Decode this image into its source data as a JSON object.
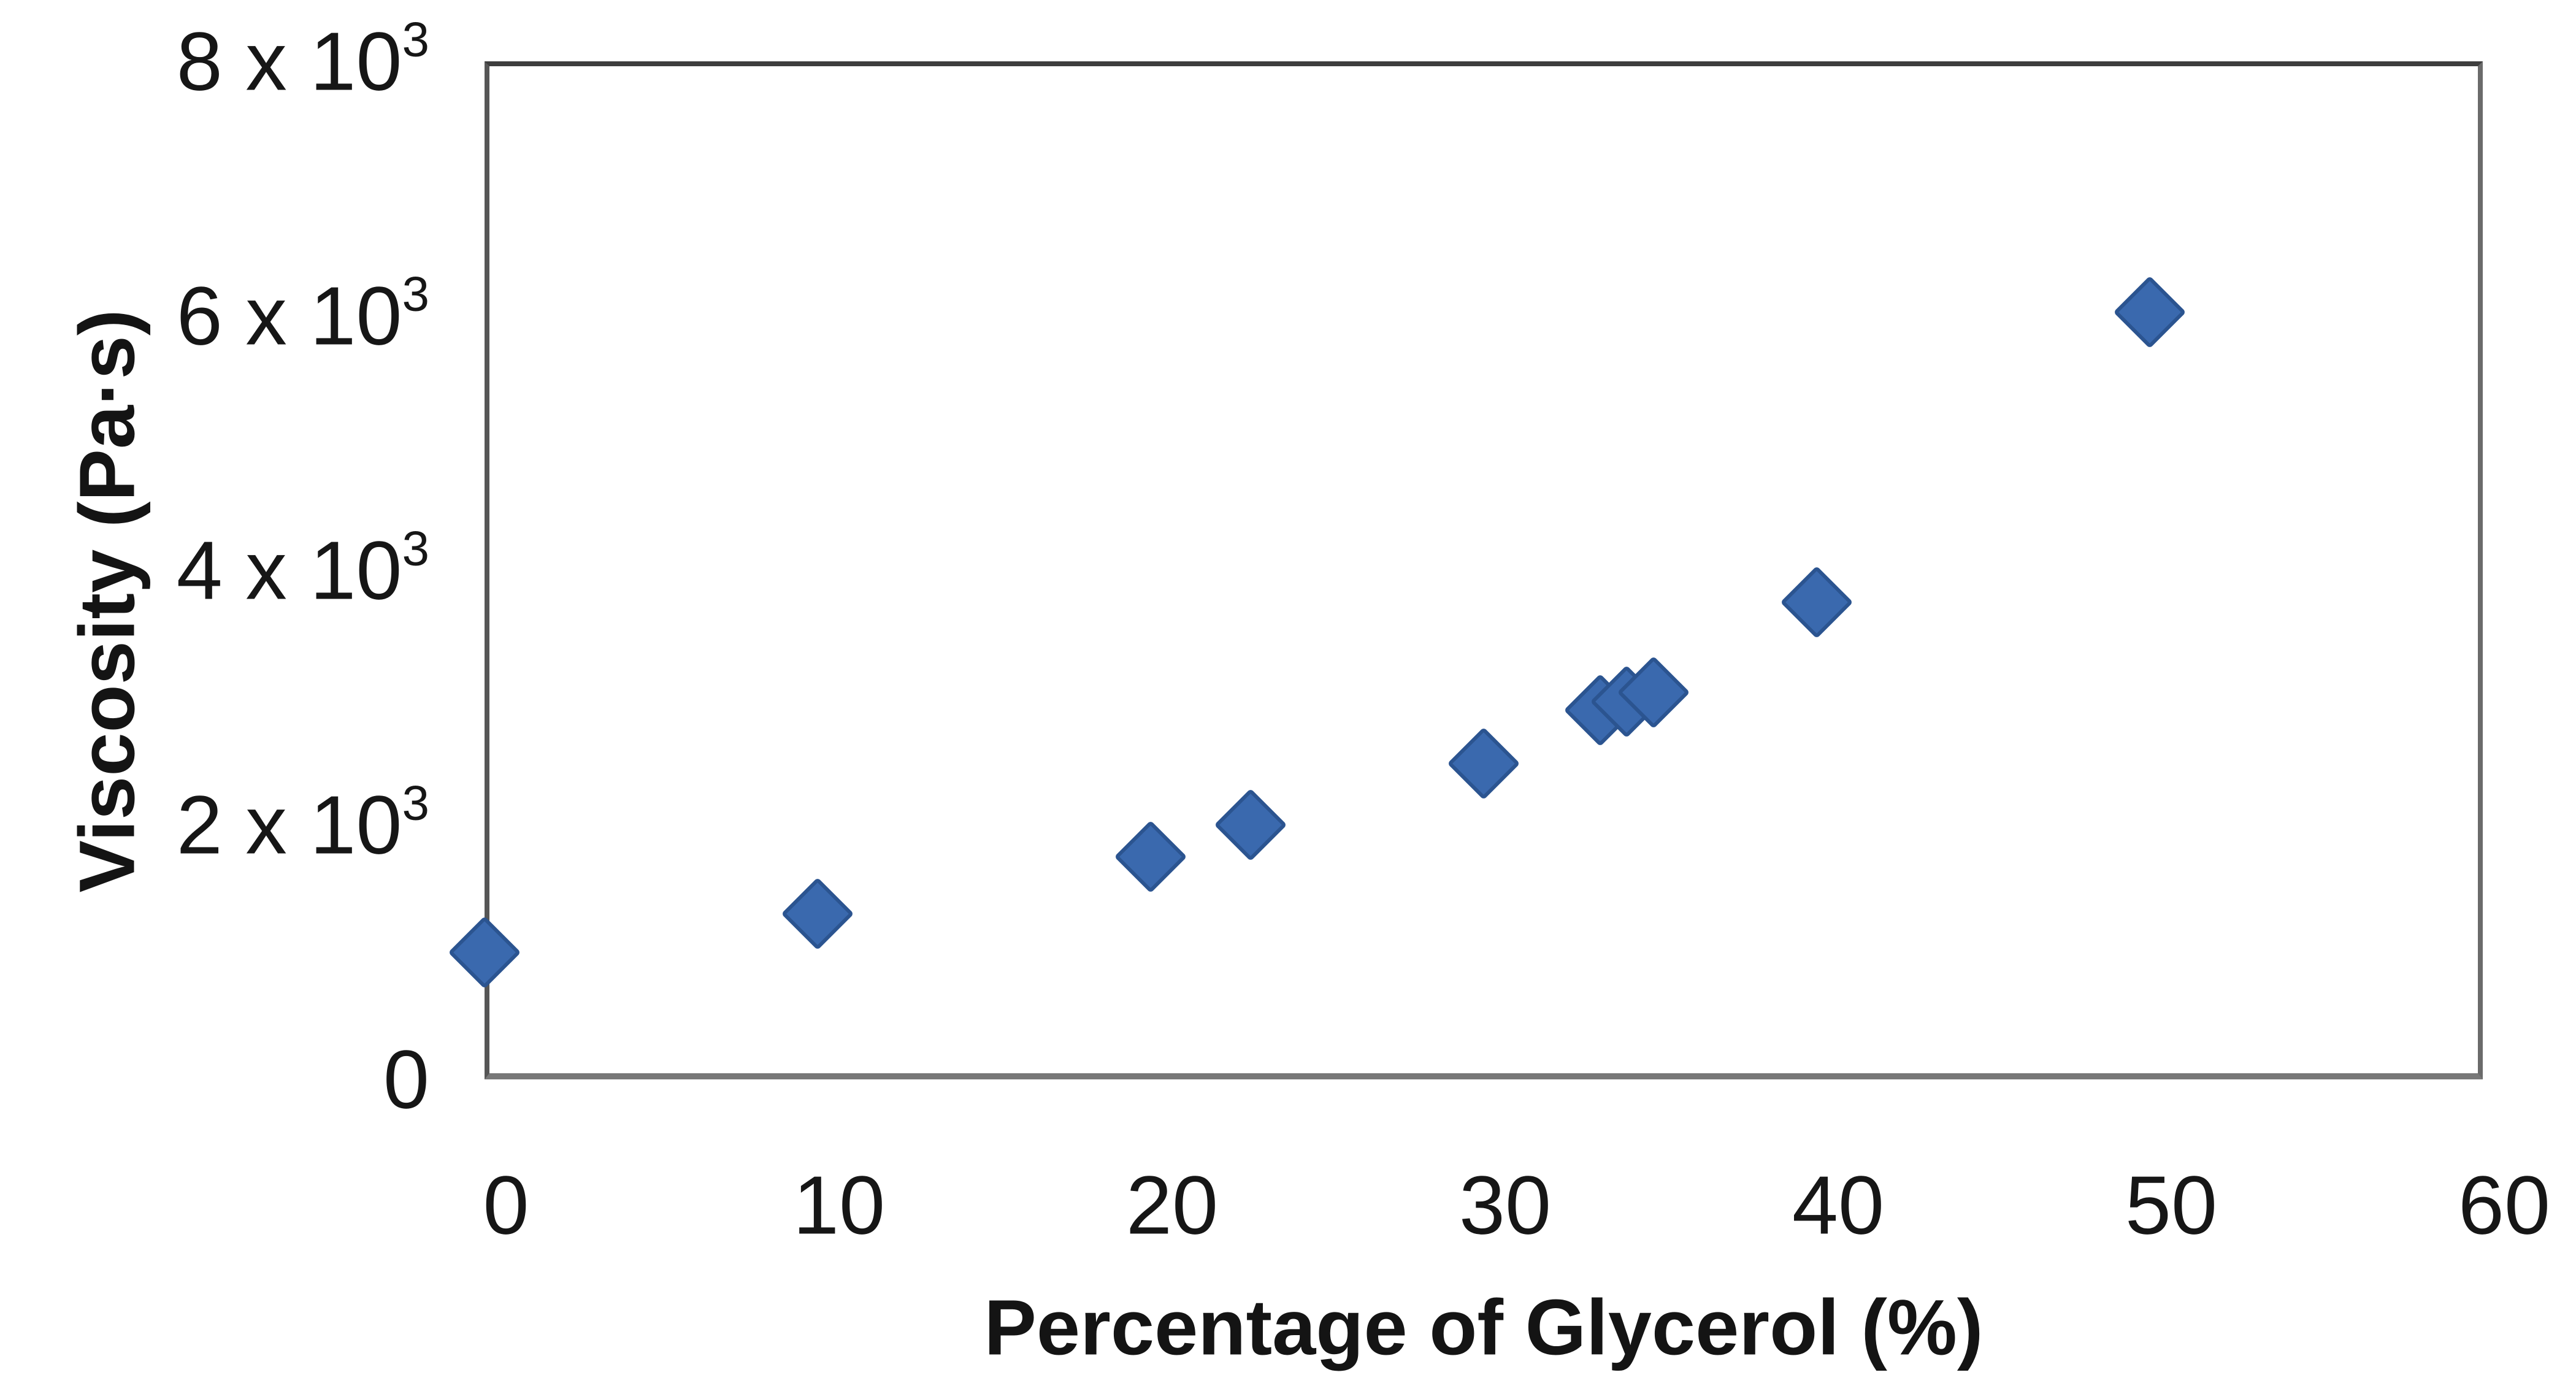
{
  "chart_data": {
    "type": "scatter",
    "title": "",
    "xlabel": "Percentage of Glycerol (%)",
    "ylabel": "Viscosity (Pa·s)",
    "xlim": [
      0,
      60
    ],
    "ylim": [
      0,
      8000
    ],
    "grid": false,
    "legend": null,
    "marker": {
      "shape": "diamond",
      "fill": "#3a69ae",
      "edge": "#2b5490"
    },
    "x_ticks": [
      {
        "label": "0",
        "v": 0
      },
      {
        "label": "10",
        "v": 10
      },
      {
        "label": "20",
        "v": 20
      },
      {
        "label": "30",
        "v": 30
      },
      {
        "label": "40",
        "v": 40
      },
      {
        "label": "50",
        "v": 50
      },
      {
        "label": "60",
        "v": 60
      }
    ],
    "y_ticks": [
      {
        "mantissa": "8 x 10",
        "exp": "3",
        "v": 8000
      },
      {
        "mantissa": "6 x 10",
        "exp": "3",
        "v": 6000
      },
      {
        "mantissa": "4 x 10",
        "exp": "3",
        "v": 4000
      },
      {
        "mantissa": "2 x 10",
        "exp": "3",
        "v": 2000
      },
      {
        "mantissa": "0",
        "exp": "",
        "v": 0
      }
    ],
    "points": [
      {
        "x": 0,
        "y": 1000
      },
      {
        "x": 10,
        "y": 1300
      },
      {
        "x": 20,
        "y": 1750
      },
      {
        "x": 23,
        "y": 2000
      },
      {
        "x": 30,
        "y": 2480
      },
      {
        "x": 33.5,
        "y": 2900
      },
      {
        "x": 34.3,
        "y": 2970
      },
      {
        "x": 35.1,
        "y": 3040
      },
      {
        "x": 40,
        "y": 3750
      },
      {
        "x": 50,
        "y": 6030
      }
    ]
  }
}
